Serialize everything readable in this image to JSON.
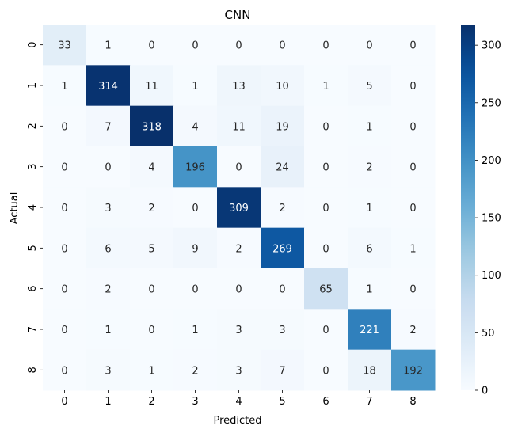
{
  "chart_data": {
    "type": "heatmap",
    "title": "CNN",
    "xlabel": "Predicted",
    "ylabel": "Actual",
    "x_categories": [
      "0",
      "1",
      "2",
      "3",
      "4",
      "5",
      "6",
      "7",
      "8"
    ],
    "y_categories": [
      "0",
      "1",
      "2",
      "3",
      "4",
      "5",
      "6",
      "7",
      "8"
    ],
    "matrix": [
      [
        33,
        1,
        0,
        0,
        0,
        0,
        0,
        0,
        0
      ],
      [
        1,
        314,
        11,
        1,
        13,
        10,
        1,
        5,
        0
      ],
      [
        0,
        7,
        318,
        4,
        11,
        19,
        0,
        1,
        0
      ],
      [
        0,
        0,
        4,
        196,
        0,
        24,
        0,
        2,
        0
      ],
      [
        0,
        3,
        2,
        0,
        309,
        2,
        0,
        1,
        0
      ],
      [
        0,
        6,
        5,
        9,
        2,
        269,
        0,
        6,
        1
      ],
      [
        0,
        2,
        0,
        0,
        0,
        0,
        65,
        1,
        0
      ],
      [
        0,
        1,
        0,
        1,
        3,
        3,
        0,
        221,
        2
      ],
      [
        0,
        3,
        1,
        2,
        3,
        7,
        0,
        18,
        192
      ]
    ],
    "colormap": "Blues",
    "vmin": 0,
    "vmax": 318,
    "colorbar_ticks": [
      "0",
      "50",
      "100",
      "150",
      "200",
      "250",
      "300"
    ],
    "annotations": true,
    "colorbar": "right"
  }
}
